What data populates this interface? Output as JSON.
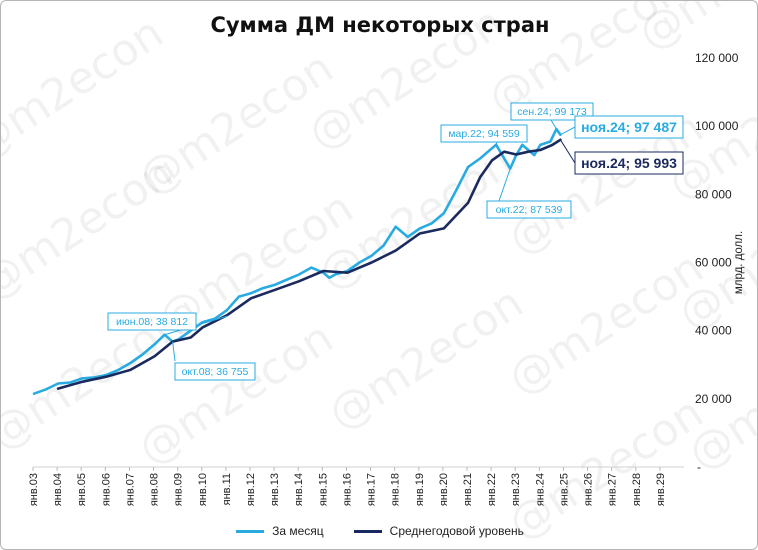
{
  "chart_data": {
    "type": "line",
    "title": "Сумма ДМ некоторых стран",
    "xlabel": "",
    "ylabel": "млрд. долл.",
    "ylim": [
      0,
      120000
    ],
    "yticks": [
      {
        "value": 0,
        "label": "-"
      },
      {
        "value": 20000,
        "label": "20 000"
      },
      {
        "value": 40000,
        "label": "40 000"
      },
      {
        "value": 60000,
        "label": "60 000"
      },
      {
        "value": 80000,
        "label": "80 000"
      },
      {
        "value": 100000,
        "label": "100 000"
      },
      {
        "value": 120000,
        "label": "120 000"
      }
    ],
    "xlim": [
      "2003-01",
      "2029-12"
    ],
    "xticks": [
      "янв.03",
      "янв.04",
      "янв.05",
      "янв.06",
      "янв.07",
      "янв.08",
      "янв.09",
      "янв.10",
      "янв.11",
      "янв.12",
      "янв.13",
      "янв.14",
      "янв.15",
      "янв.16",
      "янв.17",
      "янв.18",
      "янв.19",
      "янв.20",
      "янв.21",
      "янв.22",
      "янв.23",
      "янв.24",
      "янв.25",
      "янв.26",
      "янв.27",
      "янв.28",
      "янв.29"
    ],
    "grid": false,
    "legend_position": "bottom",
    "series": [
      {
        "name": "За месяц",
        "color": "#29abe2",
        "points": [
          [
            "2003-01",
            21500
          ],
          [
            "2003-07",
            22800
          ],
          [
            "2004-01",
            24500
          ],
          [
            "2004-07",
            24800
          ],
          [
            "2005-01",
            26000
          ],
          [
            "2005-07",
            26300
          ],
          [
            "2006-01",
            27000
          ],
          [
            "2006-07",
            28500
          ],
          [
            "2007-01",
            30500
          ],
          [
            "2007-07",
            33000
          ],
          [
            "2008-01",
            36000
          ],
          [
            "2008-06",
            38812
          ],
          [
            "2008-10",
            36755
          ],
          [
            "2009-01",
            37500
          ],
          [
            "2009-07",
            40000
          ],
          [
            "2010-01",
            42500
          ],
          [
            "2010-07",
            43500
          ],
          [
            "2011-01",
            46000
          ],
          [
            "2011-07",
            50000
          ],
          [
            "2012-01",
            51000
          ],
          [
            "2012-07",
            52500
          ],
          [
            "2013-01",
            53500
          ],
          [
            "2013-07",
            55000
          ],
          [
            "2014-01",
            56500
          ],
          [
            "2014-07",
            58500
          ],
          [
            "2015-01",
            57000
          ],
          [
            "2015-04",
            55500
          ],
          [
            "2015-07",
            56500
          ],
          [
            "2016-01",
            57500
          ],
          [
            "2016-07",
            60000
          ],
          [
            "2017-01",
            62000
          ],
          [
            "2017-07",
            65000
          ],
          [
            "2018-01",
            70500
          ],
          [
            "2018-07",
            67500
          ],
          [
            "2019-01",
            70000
          ],
          [
            "2019-07",
            71500
          ],
          [
            "2020-01",
            74500
          ],
          [
            "2020-07",
            81000
          ],
          [
            "2021-01",
            88000
          ],
          [
            "2021-07",
            90500
          ],
          [
            "2022-03",
            94559
          ],
          [
            "2022-10",
            87539
          ],
          [
            "2023-01",
            91500
          ],
          [
            "2023-04",
            94500
          ],
          [
            "2023-10",
            91500
          ],
          [
            "2024-01",
            94500
          ],
          [
            "2024-06",
            95500
          ],
          [
            "2024-09",
            99173
          ],
          [
            "2024-11",
            97487
          ]
        ]
      },
      {
        "name": "Среднегодовой уровень",
        "color": "#1b2a5e",
        "points": [
          [
            "2004-01",
            23000
          ],
          [
            "2005-01",
            25000
          ],
          [
            "2006-01",
            26500
          ],
          [
            "2007-01",
            28500
          ],
          [
            "2008-01",
            32500
          ],
          [
            "2008-10",
            36800
          ],
          [
            "2009-07",
            38000
          ],
          [
            "2010-01",
            41000
          ],
          [
            "2011-01",
            44500
          ],
          [
            "2012-01",
            49500
          ],
          [
            "2013-01",
            52000
          ],
          [
            "2014-01",
            54500
          ],
          [
            "2015-01",
            57500
          ],
          [
            "2016-01",
            57000
          ],
          [
            "2017-01",
            60000
          ],
          [
            "2018-01",
            63500
          ],
          [
            "2019-01",
            68500
          ],
          [
            "2020-01",
            70000
          ],
          [
            "2021-01",
            77500
          ],
          [
            "2021-07",
            85000
          ],
          [
            "2022-01",
            90000
          ],
          [
            "2022-07",
            92500
          ],
          [
            "2023-01",
            91700
          ],
          [
            "2023-07",
            92500
          ],
          [
            "2024-01",
            93000
          ],
          [
            "2024-07",
            94500
          ],
          [
            "2024-11",
            95993
          ]
        ]
      }
    ],
    "annotations": [
      {
        "text": "июн.08;  38 812",
        "x": "2008-06",
        "y": 38812,
        "series": "За месяц",
        "style": "small"
      },
      {
        "text": "окт.08;  36 755",
        "x": "2008-10",
        "y": 36755,
        "series": "За месяц",
        "style": "small"
      },
      {
        "text": "мар.22;  94 559",
        "x": "2022-03",
        "y": 94559,
        "series": "За месяц",
        "style": "small"
      },
      {
        "text": "окт.22;  87 539",
        "x": "2022-10",
        "y": 87539,
        "series": "За месяц",
        "style": "small"
      },
      {
        "text": "сен.24;  99 173",
        "x": "2024-09",
        "y": 99173,
        "series": "За месяц",
        "style": "small"
      },
      {
        "text": "ноя.24;  97 487",
        "x": "2024-11",
        "y": 97487,
        "series": "За месяц",
        "style": "large"
      },
      {
        "text": "ноя.24;  95 993",
        "x": "2024-11",
        "y": 95993,
        "series": "Среднегодовой уровень",
        "style": "large"
      }
    ]
  },
  "watermark": "@m2econ"
}
